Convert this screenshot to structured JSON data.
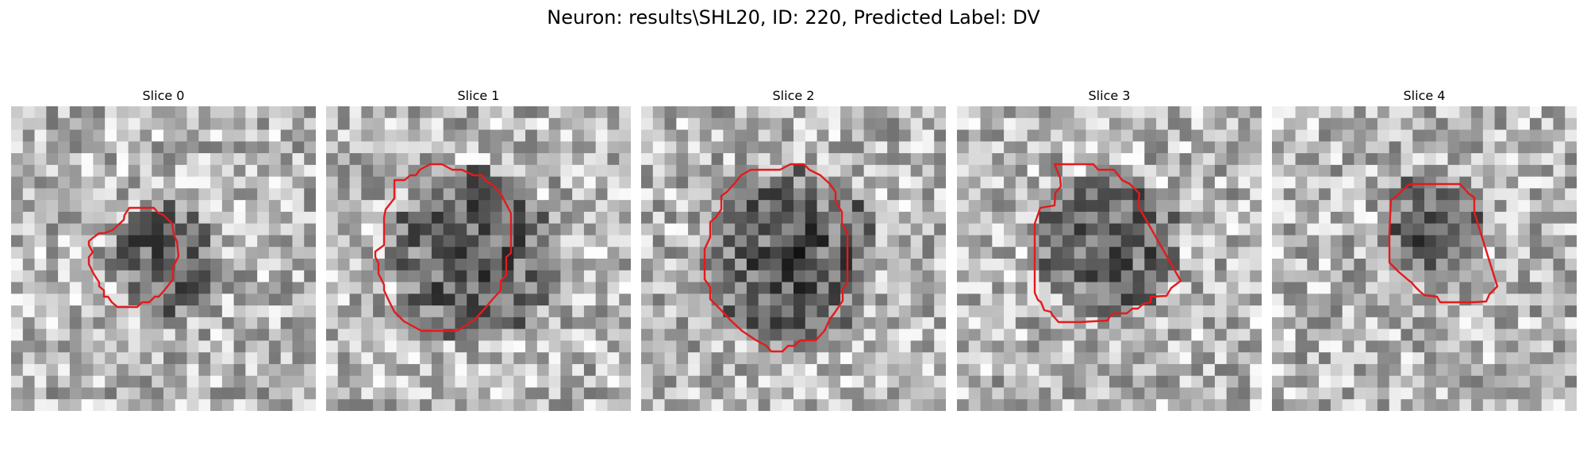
{
  "figure": {
    "title": "Neuron: results\\SHL20, ID: 220, Predicted Label: DV"
  },
  "panels": [
    {
      "title": "Slice 0",
      "contour_color": "#e41a1c",
      "dark_spot": [
        0.5,
        0.5
      ],
      "spot_radius": 0.18
    },
    {
      "title": "Slice 1",
      "contour_color": "#e41a1c",
      "dark_spot": [
        0.49,
        0.49
      ],
      "spot_radius": 0.28
    },
    {
      "title": "Slice 2",
      "contour_color": "#e41a1c",
      "dark_spot": [
        0.5,
        0.5
      ],
      "spot_radius": 0.29
    },
    {
      "title": "Slice 3",
      "contour_color": "#e41a1c",
      "dark_spot": [
        0.49,
        0.45
      ],
      "spot_radius": 0.24
    },
    {
      "title": "Slice 4",
      "contour_color": "#e41a1c",
      "dark_spot": [
        0.52,
        0.4
      ],
      "spot_radius": 0.17
    }
  ]
}
